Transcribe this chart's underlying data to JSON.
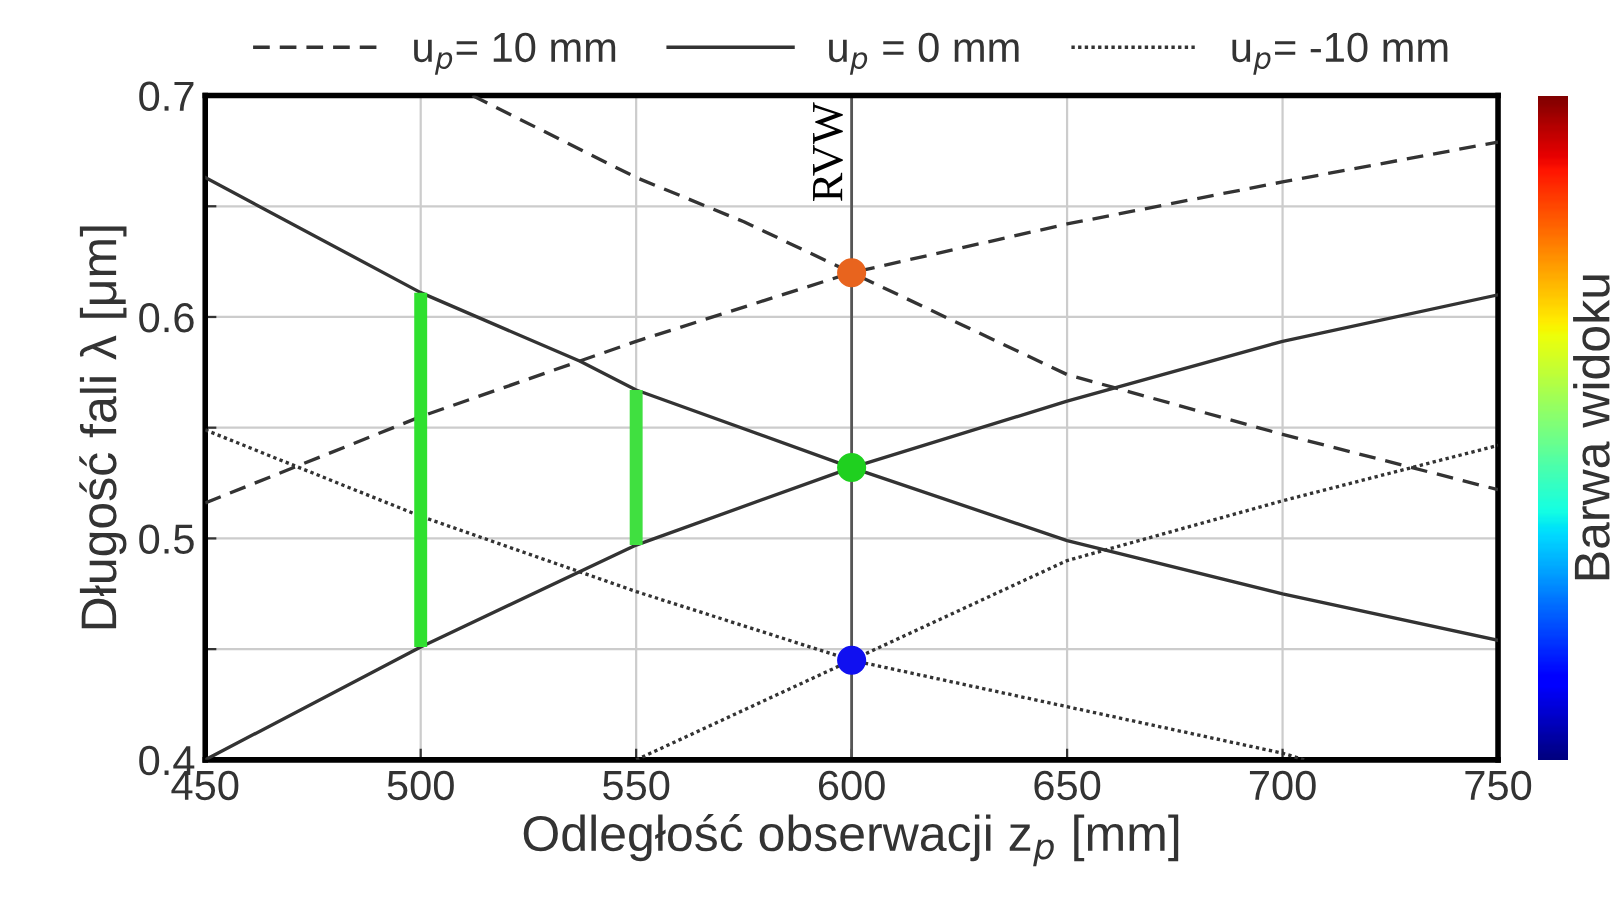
{
  "chart_data": {
    "type": "line",
    "xlabel": "Odległość obserwacji z$_{p}$ [mm]",
    "ylabel": "Długość fali λ [μm]",
    "clabel": "Barwa widoku",
    "xlim": [
      450,
      750
    ],
    "xticks": [
      450,
      500,
      550,
      600,
      650,
      700,
      750
    ],
    "ylim": [
      0.4,
      0.7
    ],
    "yticks": [
      0.4,
      {
        "value": 0.45,
        "label": null
      },
      0.5,
      {
        "value": 0.55,
        "label": null
      },
      0.6,
      {
        "value": 0.65,
        "label": null
      },
      0.7
    ],
    "grid": true,
    "legend": "top",
    "series": [
      {
        "name": "u$_{p}$= 10 mm",
        "color": "#333333",
        "line_style": "dashed",
        "x": [
          450,
          500,
          550,
          600,
          650,
          700,
          750
        ],
        "values": [
          0.516,
          0.555,
          0.589,
          0.62,
          0.642,
          0.661,
          0.679
        ]
      },
      {
        "color": "#333333",
        "line_style": "dashed",
        "x": [
          512,
          550,
          575,
          600,
          650,
          700,
          750
        ],
        "values": [
          0.7,
          0.663,
          0.643,
          0.62,
          0.574,
          0.547,
          0.522
        ]
      },
      {
        "name": "u$_{p}$ = 0 mm",
        "color": "#333333",
        "line_style": "solid",
        "x": [
          450,
          500,
          550,
          600,
          650,
          700,
          750
        ],
        "values": [
          0.4,
          0.451,
          0.497,
          0.532,
          0.562,
          0.589,
          0.61
        ]
      },
      {
        "color": "#333333",
        "line_style": "solid",
        "x": [
          450,
          500,
          537,
          550,
          600,
          650,
          700,
          750
        ],
        "values": [
          0.663,
          0.611,
          0.58,
          0.567,
          0.532,
          0.499,
          0.475,
          0.454
        ]
      },
      {
        "name": "u$_{p}$= -10 mm",
        "color": "#333333",
        "line_style": "dotted",
        "x": [
          550,
          600,
          650,
          700,
          750
        ],
        "values": [
          0.4,
          0.445,
          0.49,
          0.517,
          0.542
        ]
      },
      {
        "color": "#333333",
        "line_style": "dotted",
        "x": [
          450,
          500,
          550,
          600,
          650,
          700,
          705
        ],
        "values": [
          0.549,
          0.51,
          0.476,
          0.445,
          0.424,
          0.403,
          0.4
        ]
      },
      {
        "type": "bar",
        "x": [
          500,
          550
        ],
        "base": [
          0.451,
          0.497
        ],
        "values": [
          0.16,
          0.07
        ],
        "colors": [
          "#2fe02f",
          "#40e040"
        ]
      },
      {
        "type": "scatter",
        "marker": "circle",
        "x": [
          600,
          600,
          600
        ],
        "values": [
          0.62,
          0.532,
          0.445
        ],
        "colors": [
          "#e8641e",
          "#1fd01f",
          "#1010f0"
        ]
      }
    ],
    "ref_lines": [
      {
        "axis": "x",
        "value": 600,
        "label": "RVW",
        "color": "#555555"
      }
    ]
  }
}
